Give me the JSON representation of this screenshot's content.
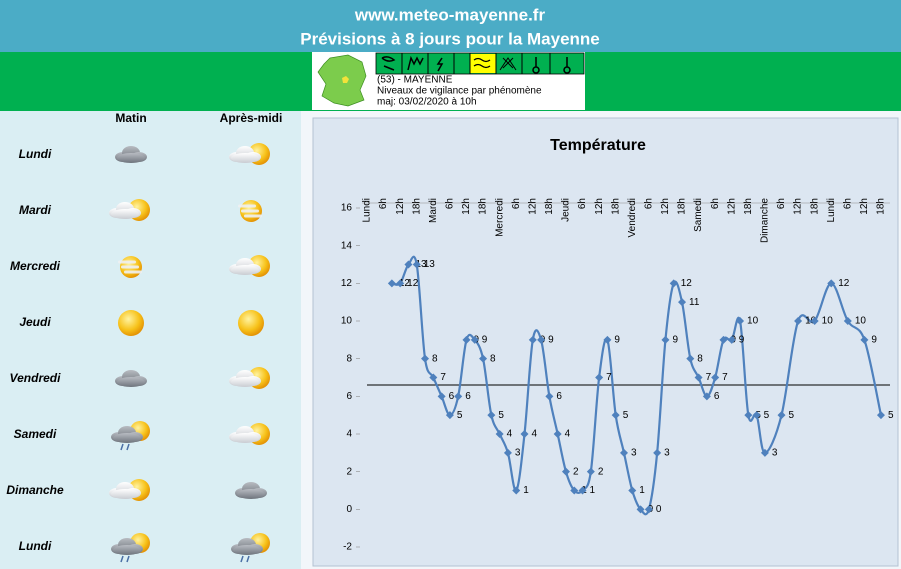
{
  "header": {
    "site": "www.meteo-mayenne.fr",
    "title": "Prévisions à 8 jours pour la Mayenne"
  },
  "vigilance": {
    "department": "(53) - MAYENNE",
    "description": "Niveaux de vigilance par phénomène",
    "updated": "maj: 03/02/2020 à 10h"
  },
  "forecast": {
    "columns": [
      "Matin",
      "Après-midi"
    ],
    "days": [
      "Lundi",
      "Mardi",
      "Mercredi",
      "Jeudi",
      "Vendredi",
      "Samedi",
      "Dimanche",
      "Lundi"
    ]
  },
  "chart_data": {
    "type": "line",
    "title": "Température",
    "categories": [
      "Lundi",
      null,
      "6h",
      null,
      "12h",
      null,
      "18h",
      null,
      "Mardi",
      null,
      "6h",
      null,
      "12h",
      null,
      "18h",
      null,
      "Mercredi",
      null,
      "6h",
      null,
      "12h",
      null,
      "18h",
      null,
      "Jeudi",
      null,
      "6h",
      null,
      "12h",
      null,
      "18h",
      null,
      "Vendredi",
      null,
      "6h",
      null,
      "12h",
      null,
      "18h",
      null,
      "Samedi",
      null,
      "6h",
      null,
      "12h",
      null,
      "18h",
      null,
      "Dimanche",
      null,
      "6h",
      null,
      "12h",
      null,
      "18h",
      null,
      "Lundi",
      null,
      "6h",
      null,
      "12h",
      null,
      "18h"
    ],
    "values": [
      null,
      null,
      null,
      12,
      12,
      13,
      13,
      8,
      7,
      6,
      5,
      6,
      9,
      9,
      8,
      5,
      4,
      3,
      1,
      4,
      9,
      9,
      6,
      4,
      2,
      1,
      1,
      2,
      7,
      9,
      5,
      3,
      1,
      0,
      0,
      3,
      9,
      12,
      11,
      8,
      7,
      6,
      7,
      9,
      9,
      10,
      5,
      5,
      3,
      null,
      5,
      null,
      10,
      null,
      10,
      null,
      12,
      null,
      10,
      null,
      9,
      null,
      5
    ],
    "color": "#4f81bd",
    "span_gaps": true,
    "data_labels": true,
    "reference_line": 6.6,
    "ylim": [
      -2,
      16
    ],
    "yticks": [
      -2,
      0,
      2,
      4,
      6,
      8,
      10,
      12,
      14,
      16
    ]
  }
}
